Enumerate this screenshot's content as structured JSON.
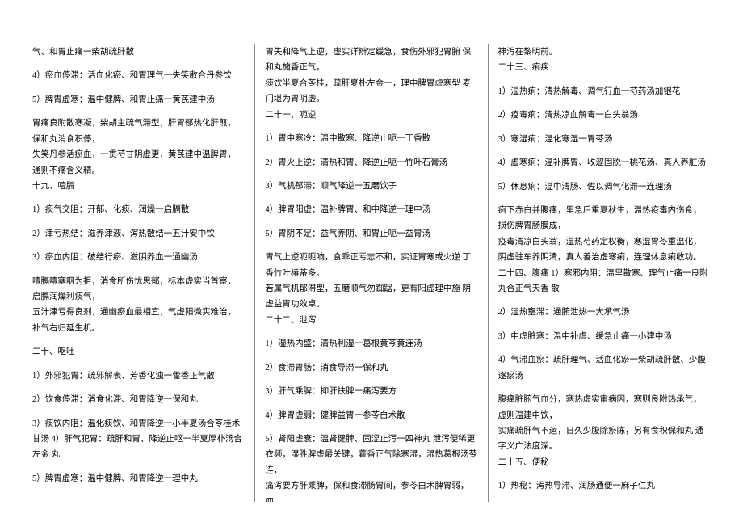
{
  "columns": {
    "col1": [
      "气、和胃止痛一柴胡疏肝散",
      "4）瘀血停滞：活血化瘀、和胃理气一失笑散合丹参饮",
      "5）脾胃虚寒：温中健脾、和胃止痛一黄芪建中汤",
      "胃痛良附散寒凝，柴胡主疏气滞型，肝胃郁热化肝煎，  保和丸消食积停，\n失笑丹参活瘀血，一贯芍甘阴虚更，黄芪建中温脾胃，  通则不痛含义精。\n十九、噎膈",
      "1）痰气交阻：开郁、化痰、润燥一启膈散",
      "2）津亏热结：滋养津液、泻热散结一五汁安中饮",
      "3）瘀血内阻：破结行瘀、滋阴养血一通幽汤",
      "噎膈噎塞咽为拒，消食所伤忧思郁，标本虚实当首察，  启膈润燥利痰气，\n五汁津亏得良剂，通幽瘀血最相宜，气虚阳微实难治，  补气右归延生机。",
      "二十、呕吐",
      "1）外邪犯胃：疏邪解表、芳香化浊一藿香正气散",
      "2）饮食停滞：消食化滞、和胃降逆一保和丸",
      "3）痰饮内阻：温化痰饮、和胃降逆一小半夏汤合苓桂术甘汤 4）肝气犯胃：疏肝和胃、降逆止呕一半夏厚朴汤合左金 丸",
      "5）脾胃虚寒：温中健脾、和胃降逆一理中丸"
    ],
    "col2": [
      "胃失和降气上逆，虚实详辨定缓急，食伤外邪犯胃腑 保和丸施香正气，\n痰饮半夏合苓桂，疏肝夏朴左金一，理中脾胃虚寒型 麦门堪为胃阴虚。\n二十一、呃逆",
      "1）胃中寒冷：温中散寒、降逆止呃一丁香散",
      "2）胃火上逆：清热和胃、降逆止呃一竹叶石膏汤",
      "3）气机郁滞：顺气降逆一五磨饮子",
      "4）脾胃阳虚：温补脾胃、和中降逆一理中汤",
      "5）胃阴不足：益气养阴、和胃止呃一益胃汤",
      "胃气上逆呃呃响，食乖正亏志不和，实证胃寒或火逆 丁香竹叶椿蒂多。\n若属气机郁滞型，五磨顺气勿踟踞，更有阳虚理中施 阴虚益胃功效卓。\n二十二、泄泻",
      "1）湿热内盛：清热利湿一葛根黄芩黄连汤",
      "2）食滞胃肠：消食导滞一保和丸",
      "3）肝气乘脾：抑肝扶脾一痛泻要方",
      "4）脾胃虚弱：健脾益胃一参苓白术散",
      "5）肾阳虚衰：温肾健脾、固涩止泻一四神丸 泄泻便稀更衣频，湿胜脾虚最关键，藿香正气除寒湿，湿热葛根汤苓连，\n痛泻要方肝乘脾，保和食滞肠胃间，参苓白术脾胃弱，  四"
    ],
    "col3": [
      "神泻在黎明前。\n二十三、痢疾",
      "1）湿热痢：清热解毒、调气行血一芍药汤加银花",
      "2）疫毒痢：清热凉血解毒一白头翁汤",
      "3）寒湿痢：温化寒湿一胃苓汤",
      "4）虚寒痢：温补脾胃、收涩固脱一桃花汤、真人养脏汤",
      "5）休息痢：温中清肠、佐以调气化滞一连理汤",
      "痢下赤白并腹痛，里急后重夏秋生，温热疫毒内伤食，  损伤脾胃肠膜成，\n疫毒清凉白头翁，湿热芍药定权衡，寒湿胃苓重温化，  阴虚驻车养阴清，真人善治虚寒痢，连理休息痢收功。\n二十四、腹痛 1）寒邪内阻：温里散寒、理气止痛一良附丸合正气天香 散",
      "2）湿热壅滞：通腑泄热一大承气汤",
      "3）中虚脏寒：温中补虚、缓急止痛一小建中汤",
      "4）气滞血瘀：疏肝理气、活血化瘀一柴胡疏肝散、少腹逐瘀汤",
      "腹痛脏腑气血分，寒热虚实审病因，寒则良附热承气，  虚则温建中饮，\n实痛疏肝气不运，日久少腹除瘀陈，另有食积保和丸 通字义广法度深。\n二十五、便秘",
      "1）热秘：泻热导滞、润肠通便一麻子仁丸"
    ]
  }
}
